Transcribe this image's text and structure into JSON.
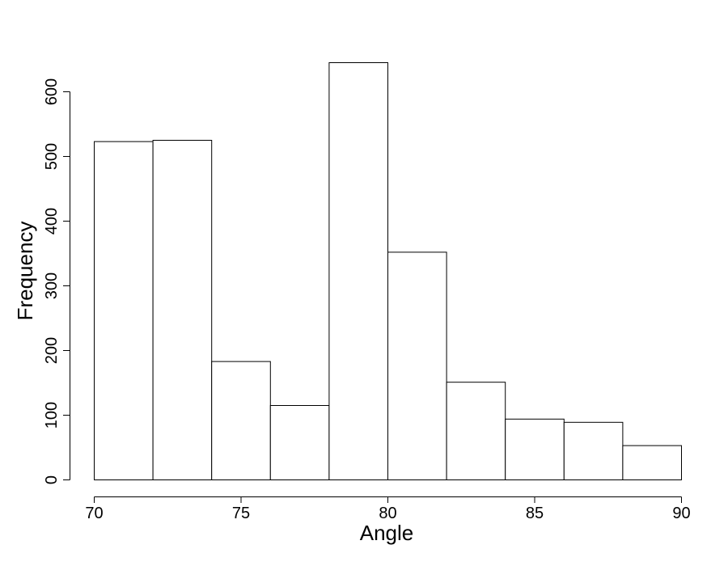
{
  "chart_data": {
    "type": "bar",
    "title": "",
    "xlabel": "Angle",
    "ylabel": "Frequency",
    "bin_edges": [
      70,
      72,
      74,
      76,
      78,
      80,
      82,
      84,
      86,
      88,
      90
    ],
    "values": [
      523,
      525,
      183,
      115,
      645,
      352,
      151,
      94,
      89,
      53
    ],
    "xlim": [
      70,
      90
    ],
    "ylim": [
      0,
      645
    ],
    "x_ticks": [
      70,
      75,
      80,
      85,
      90
    ],
    "y_ticks": [
      0,
      100,
      200,
      300,
      400,
      500,
      600
    ],
    "grid": false,
    "bar_fill": "#ffffff",
    "bar_stroke": "#000000"
  }
}
